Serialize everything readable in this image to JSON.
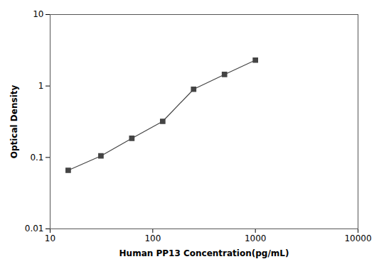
{
  "chart_data": {
    "type": "line",
    "x": [
      15,
      31.25,
      62.5,
      125,
      250,
      500,
      1000
    ],
    "values": [
      0.066,
      0.105,
      0.185,
      0.32,
      0.9,
      1.45,
      2.3
    ],
    "xlabel": "Human PP13 Concentration(pg/mL)",
    "ylabel": "Optical Density",
    "xlim": [
      10,
      10000
    ],
    "ylim": [
      0.01,
      10
    ],
    "xticks": [
      10,
      100,
      1000,
      10000
    ],
    "yticks": [
      0.01,
      0.1,
      1,
      10
    ],
    "log": true,
    "grid": false,
    "color": "#444444",
    "marker": "square"
  }
}
